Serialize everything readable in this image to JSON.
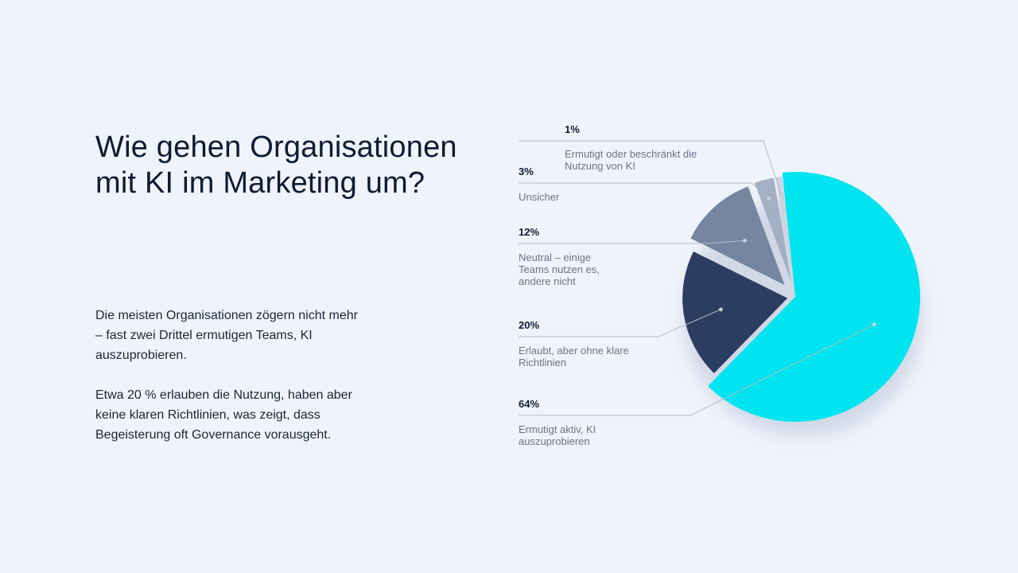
{
  "heading": {
    "title": "Wie gehen Organisationen mit KI im Marketing um?"
  },
  "description": {
    "paragraph1": "Die meisten Organisationen zögern nicht mehr – fast zwei Drittel ermutigen Teams, KI auszuprobieren.",
    "paragraph2": "Etwa 20 % erlauben die Nutzung, haben aber keine klaren Richtlinien, was zeigt, dass Begeisterung oft Governance vorausgeht."
  },
  "chart_data": {
    "type": "pie",
    "title": "",
    "categories": [
      "Ermutigt aktiv, KI auszuprobieren",
      "Erlaubt, aber ohne klare Richtlinien",
      "Neutral – einige Teams nutzen es, andere nicht",
      "Unsicher",
      "Ermutigt oder beschränkt die Nutzung von KI"
    ],
    "values": [
      64,
      20,
      12,
      3,
      1
    ],
    "value_labels": [
      "64%",
      "20%",
      "12%",
      "3%",
      "1%"
    ],
    "label_lines": [
      [
        "Ermutigt aktiv, KI",
        "auszuprobieren"
      ],
      [
        "Erlaubt, aber ohne klare",
        "Richtlinien"
      ],
      [
        "Neutral – einige",
        "Teams nutzen es,",
        "andere nicht"
      ],
      [
        "Unsicher"
      ],
      [
        "Ermutigt oder beschränkt die",
        "Nutzung von KI"
      ]
    ],
    "colors": [
      "#00e4ef",
      "#2c3d62",
      "#7685a0",
      "#a4afc4",
      "#ccd3e0"
    ],
    "legend": "callouts-left"
  }
}
